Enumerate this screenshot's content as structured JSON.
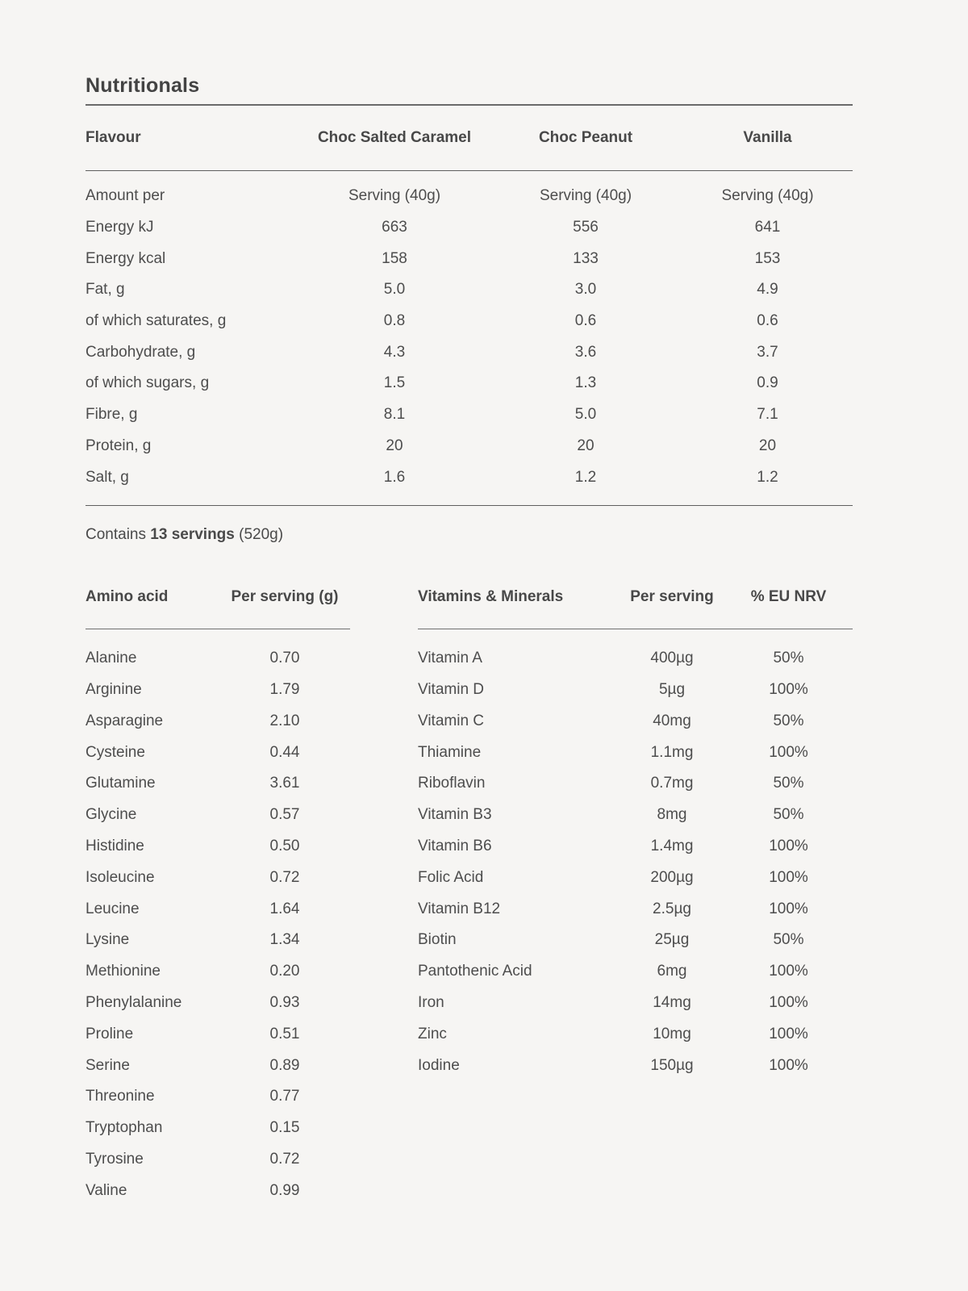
{
  "theme": {
    "background": "#f6f5f3",
    "text": "#4d4d4d"
  },
  "page": {
    "title": "Nutritionals"
  },
  "nutrition_table": {
    "columns": [
      "Flavour",
      "Choc Salted Caramel",
      "Choc Peanut",
      "Vanilla"
    ],
    "rows": [
      {
        "label": "Amount per",
        "values": [
          "Serving (40g)",
          "Serving (40g)",
          "Serving (40g)"
        ]
      },
      {
        "label": "Energy kJ",
        "values": [
          "663",
          "556",
          "641"
        ]
      },
      {
        "label": "Energy kcal",
        "values": [
          "158",
          "133",
          "153"
        ]
      },
      {
        "label": "Fat, g",
        "values": [
          "5.0",
          "3.0",
          "4.9"
        ]
      },
      {
        "label": "of which saturates, g",
        "values": [
          "0.8",
          "0.6",
          "0.6"
        ]
      },
      {
        "label": "Carbohydrate, g",
        "values": [
          "4.3",
          "3.6",
          "3.7"
        ]
      },
      {
        "label": "of which sugars, g",
        "values": [
          "1.5",
          "1.3",
          "0.9"
        ]
      },
      {
        "label": "Fibre, g",
        "values": [
          "8.1",
          "5.0",
          "7.1"
        ]
      },
      {
        "label": "Protein, g",
        "values": [
          "20",
          "20",
          "20"
        ]
      },
      {
        "label": "Salt, g",
        "values": [
          "1.6",
          "1.2",
          "1.2"
        ]
      }
    ]
  },
  "servings_note": {
    "prefix": "Contains ",
    "bold": "13 servings",
    "suffix": " (520g)"
  },
  "amino_table": {
    "columns": [
      "Amino acid",
      "Per serving (g)"
    ],
    "rows": [
      {
        "label": "Alanine",
        "value": "0.70"
      },
      {
        "label": "Arginine",
        "value": "1.79"
      },
      {
        "label": "Asparagine",
        "value": "2.10"
      },
      {
        "label": "Cysteine",
        "value": "0.44"
      },
      {
        "label": "Glutamine",
        "value": "3.61"
      },
      {
        "label": "Glycine",
        "value": "0.57"
      },
      {
        "label": "Histidine",
        "value": "0.50"
      },
      {
        "label": "Isoleucine",
        "value": "0.72"
      },
      {
        "label": "Leucine",
        "value": "1.64"
      },
      {
        "label": "Lysine",
        "value": "1.34"
      },
      {
        "label": "Methionine",
        "value": "0.20"
      },
      {
        "label": "Phenylalanine",
        "value": "0.93"
      },
      {
        "label": "Proline",
        "value": "0.51"
      },
      {
        "label": "Serine",
        "value": "0.89"
      },
      {
        "label": "Threonine",
        "value": "0.77"
      },
      {
        "label": "Tryptophan",
        "value": "0.15"
      },
      {
        "label": "Tyrosine",
        "value": "0.72"
      },
      {
        "label": "Valine",
        "value": "0.99"
      }
    ]
  },
  "vitamins_table": {
    "columns": [
      "Vitamins & Minerals",
      "Per serving",
      "% EU NRV"
    ],
    "rows": [
      {
        "label": "Vitamin A",
        "value": "400µg",
        "nrv": "50%"
      },
      {
        "label": "Vitamin D",
        "value": "5µg",
        "nrv": "100%"
      },
      {
        "label": "Vitamin C",
        "value": "40mg",
        "nrv": "50%"
      },
      {
        "label": "Thiamine",
        "value": "1.1mg",
        "nrv": "100%"
      },
      {
        "label": "Riboflavin",
        "value": "0.7mg",
        "nrv": "50%"
      },
      {
        "label": "Vitamin B3",
        "value": "8mg",
        "nrv": "50%"
      },
      {
        "label": "Vitamin B6",
        "value": "1.4mg",
        "nrv": "100%"
      },
      {
        "label": "Folic Acid",
        "value": "200µg",
        "nrv": "100%"
      },
      {
        "label": "Vitamin B12",
        "value": "2.5µg",
        "nrv": "100%"
      },
      {
        "label": "Biotin",
        "value": "25µg",
        "nrv": "50%"
      },
      {
        "label": "Pantothenic Acid",
        "value": "6mg",
        "nrv": "100%"
      },
      {
        "label": "Iron",
        "value": "14mg",
        "nrv": "100%"
      },
      {
        "label": "Zinc",
        "value": "10mg",
        "nrv": "100%"
      },
      {
        "label": "Iodine",
        "value": "150µg",
        "nrv": "100%"
      }
    ]
  }
}
